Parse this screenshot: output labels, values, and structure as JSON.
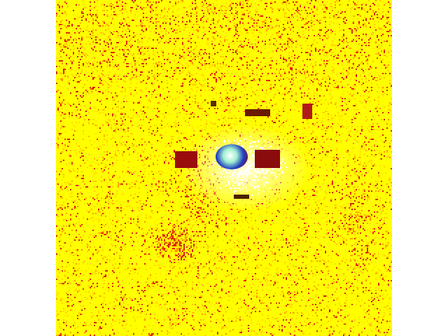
{
  "image": {
    "background_color": "#ffffff",
    "field_color": "#ffff00",
    "noise_color": "#e52a10",
    "hot_color": "#b01010",
    "description_colors": [
      "#ffff00",
      "#ff8c00",
      "#cc1a1a",
      "#ffffff"
    ]
  }
}
